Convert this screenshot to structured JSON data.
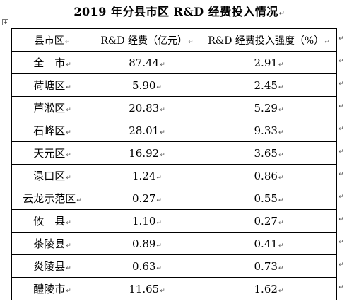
{
  "title": "2019 年分县市区 R&D 经费投入情况",
  "paragraph_mark": "↵",
  "table": {
    "headers": [
      "县市区",
      "R&D 经费（亿元）",
      "R&D 经费投入强度（%）"
    ],
    "rows": [
      [
        "全　市",
        "87.44",
        "2.91"
      ],
      [
        "荷塘区",
        "5.90",
        "2.45"
      ],
      [
        "芦淞区",
        "20.83",
        "5.29"
      ],
      [
        "石峰区",
        "28.01",
        "9.33"
      ],
      [
        "天元区",
        "16.92",
        "3.65"
      ],
      [
        "渌口区",
        "1.24",
        "0.86"
      ],
      [
        "云龙示范区",
        "0.27",
        "0.55"
      ],
      [
        "攸　县",
        "1.10",
        "0.27"
      ],
      [
        "茶陵县",
        "0.89",
        "0.41"
      ],
      [
        "炎陵县",
        "0.63",
        "0.73"
      ],
      [
        "醴陵市",
        "11.65",
        "1.62"
      ]
    ]
  }
}
